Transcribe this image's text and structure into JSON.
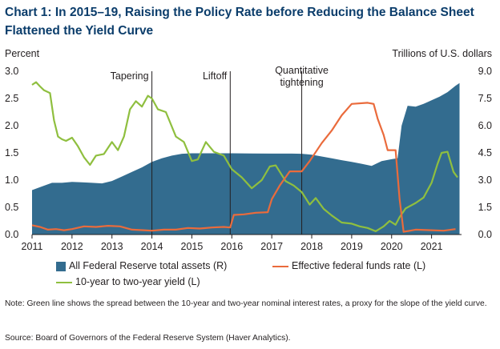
{
  "title": {
    "line1": "Chart 1: In 2015–19, Raising the Policy Rate before Reducing the Balance Sheet",
    "line2": "Flattened the Yield Curve"
  },
  "left_axis_label": "Percent",
  "right_axis_label": "Trillions of U.S. dollars",
  "note": "Note: Green line shows the spread between the 10-year and two-year nominal interest rates, a proxy for the slope of the yield curve.",
  "source": "Source: Board of Governors of the Federal Reserve System (Haver Analytics).",
  "colors": {
    "assets": "#336c8f",
    "fed_funds": "#ea6b3c",
    "yield_spread": "#8fbf3f",
    "event_line": "#231f20",
    "title": "#0b3d6b"
  },
  "chart_data": {
    "type": "area",
    "x_axis": {
      "ticks": [
        "2011",
        "2012",
        "2013",
        "2014",
        "2015",
        "2016",
        "2017",
        "2018",
        "2019",
        "2020",
        "2021"
      ],
      "range": [
        2011.0,
        2021.75
      ]
    },
    "y_left": {
      "range": [
        0,
        3.0
      ],
      "ticks": [
        "0.0",
        "0.5",
        "1.0",
        "1.5",
        "2.0",
        "2.5",
        "3.0"
      ],
      "unit": "Percent"
    },
    "y_right": {
      "range": [
        0,
        9.0
      ],
      "ticks": [
        "0.0",
        "1.5",
        "3.0",
        "4.5",
        "6.0",
        "7.5",
        "9.0"
      ],
      "unit": "Trillions of U.S. dollars"
    },
    "grid": false,
    "legend_position": "bottom",
    "events": [
      {
        "label": "Tapering",
        "x": 2014.0
      },
      {
        "label": "Liftoff",
        "x": 2015.96
      },
      {
        "label": "Quantitative tightening",
        "label_lines": [
          "Quantitative",
          "tightening"
        ],
        "x": 2017.75
      }
    ],
    "series": [
      {
        "name": "All Federal Reserve total assets (R)",
        "type": "area",
        "axis": "right",
        "points": [
          [
            2011.0,
            2.45
          ],
          [
            2011.25,
            2.65
          ],
          [
            2011.5,
            2.85
          ],
          [
            2011.75,
            2.85
          ],
          [
            2012.0,
            2.9
          ],
          [
            2012.25,
            2.88
          ],
          [
            2012.5,
            2.85
          ],
          [
            2012.75,
            2.82
          ],
          [
            2013.0,
            2.95
          ],
          [
            2013.25,
            3.2
          ],
          [
            2013.5,
            3.45
          ],
          [
            2013.75,
            3.7
          ],
          [
            2014.0,
            4.0
          ],
          [
            2014.25,
            4.2
          ],
          [
            2014.5,
            4.35
          ],
          [
            2014.75,
            4.45
          ],
          [
            2015.0,
            4.48
          ],
          [
            2015.5,
            4.48
          ],
          [
            2016.0,
            4.48
          ],
          [
            2016.5,
            4.47
          ],
          [
            2017.0,
            4.46
          ],
          [
            2017.5,
            4.46
          ],
          [
            2017.75,
            4.45
          ],
          [
            2018.0,
            4.4
          ],
          [
            2018.25,
            4.3
          ],
          [
            2018.5,
            4.2
          ],
          [
            2018.75,
            4.1
          ],
          [
            2019.0,
            4.0
          ],
          [
            2019.25,
            3.9
          ],
          [
            2019.5,
            3.78
          ],
          [
            2019.75,
            4.05
          ],
          [
            2020.0,
            4.15
          ],
          [
            2020.15,
            4.2
          ],
          [
            2020.25,
            6.0
          ],
          [
            2020.4,
            7.1
          ],
          [
            2020.6,
            7.05
          ],
          [
            2020.8,
            7.2
          ],
          [
            2021.0,
            7.4
          ],
          [
            2021.2,
            7.6
          ],
          [
            2021.4,
            7.85
          ],
          [
            2021.6,
            8.2
          ],
          [
            2021.7,
            8.35
          ]
        ]
      },
      {
        "name": "Effective federal funds rate (L)",
        "type": "line",
        "axis": "left",
        "points": [
          [
            2011.0,
            0.17
          ],
          [
            2011.2,
            0.14
          ],
          [
            2011.4,
            0.09
          ],
          [
            2011.6,
            0.1
          ],
          [
            2011.8,
            0.08
          ],
          [
            2012.0,
            0.1
          ],
          [
            2012.3,
            0.15
          ],
          [
            2012.6,
            0.14
          ],
          [
            2012.9,
            0.16
          ],
          [
            2013.2,
            0.15
          ],
          [
            2013.5,
            0.09
          ],
          [
            2013.8,
            0.08
          ],
          [
            2014.0,
            0.07
          ],
          [
            2014.3,
            0.09
          ],
          [
            2014.6,
            0.09
          ],
          [
            2014.9,
            0.12
          ],
          [
            2015.2,
            0.11
          ],
          [
            2015.5,
            0.13
          ],
          [
            2015.8,
            0.14
          ],
          [
            2015.96,
            0.13
          ],
          [
            2016.05,
            0.36
          ],
          [
            2016.3,
            0.37
          ],
          [
            2016.6,
            0.4
          ],
          [
            2016.9,
            0.41
          ],
          [
            2017.0,
            0.65
          ],
          [
            2017.2,
            0.9
          ],
          [
            2017.45,
            1.16
          ],
          [
            2017.75,
            1.16
          ],
          [
            2017.95,
            1.35
          ],
          [
            2018.25,
            1.68
          ],
          [
            2018.5,
            1.91
          ],
          [
            2018.75,
            2.19
          ],
          [
            2019.0,
            2.4
          ],
          [
            2019.4,
            2.42
          ],
          [
            2019.55,
            2.4
          ],
          [
            2019.65,
            2.13
          ],
          [
            2019.8,
            1.83
          ],
          [
            2019.9,
            1.55
          ],
          [
            2020.1,
            1.55
          ],
          [
            2020.2,
            0.65
          ],
          [
            2020.3,
            0.05
          ],
          [
            2020.6,
            0.09
          ],
          [
            2021.0,
            0.08
          ],
          [
            2021.3,
            0.07
          ],
          [
            2021.6,
            0.1
          ]
        ]
      },
      {
        "name": "10-year to two-year yield (L)",
        "type": "line",
        "axis": "left",
        "points": [
          [
            2011.0,
            2.75
          ],
          [
            2011.1,
            2.8
          ],
          [
            2011.2,
            2.72
          ],
          [
            2011.3,
            2.65
          ],
          [
            2011.45,
            2.6
          ],
          [
            2011.55,
            2.1
          ],
          [
            2011.65,
            1.8
          ],
          [
            2011.75,
            1.75
          ],
          [
            2011.85,
            1.72
          ],
          [
            2012.0,
            1.78
          ],
          [
            2012.15,
            1.62
          ],
          [
            2012.3,
            1.42
          ],
          [
            2012.45,
            1.28
          ],
          [
            2012.6,
            1.45
          ],
          [
            2012.8,
            1.48
          ],
          [
            2013.0,
            1.7
          ],
          [
            2013.15,
            1.55
          ],
          [
            2013.3,
            1.8
          ],
          [
            2013.45,
            2.3
          ],
          [
            2013.6,
            2.45
          ],
          [
            2013.75,
            2.35
          ],
          [
            2013.9,
            2.55
          ],
          [
            2014.0,
            2.5
          ],
          [
            2014.15,
            2.3
          ],
          [
            2014.35,
            2.25
          ],
          [
            2014.6,
            1.8
          ],
          [
            2014.8,
            1.7
          ],
          [
            2015.0,
            1.35
          ],
          [
            2015.15,
            1.38
          ],
          [
            2015.35,
            1.7
          ],
          [
            2015.55,
            1.52
          ],
          [
            2015.8,
            1.45
          ],
          [
            2016.0,
            1.2
          ],
          [
            2016.25,
            1.05
          ],
          [
            2016.5,
            0.85
          ],
          [
            2016.75,
            1.0
          ],
          [
            2016.95,
            1.25
          ],
          [
            2017.1,
            1.27
          ],
          [
            2017.35,
            0.98
          ],
          [
            2017.55,
            0.9
          ],
          [
            2017.75,
            0.78
          ],
          [
            2017.95,
            0.55
          ],
          [
            2018.1,
            0.67
          ],
          [
            2018.3,
            0.47
          ],
          [
            2018.5,
            0.35
          ],
          [
            2018.75,
            0.22
          ],
          [
            2019.0,
            0.2
          ],
          [
            2019.2,
            0.15
          ],
          [
            2019.4,
            0.12
          ],
          [
            2019.6,
            0.06
          ],
          [
            2019.8,
            0.15
          ],
          [
            2019.95,
            0.25
          ],
          [
            2020.1,
            0.18
          ],
          [
            2020.2,
            0.32
          ],
          [
            2020.35,
            0.48
          ],
          [
            2020.6,
            0.58
          ],
          [
            2020.8,
            0.68
          ],
          [
            2021.0,
            0.95
          ],
          [
            2021.15,
            1.3
          ],
          [
            2021.25,
            1.5
          ],
          [
            2021.4,
            1.52
          ],
          [
            2021.55,
            1.15
          ],
          [
            2021.65,
            1.05
          ]
        ]
      }
    ]
  }
}
